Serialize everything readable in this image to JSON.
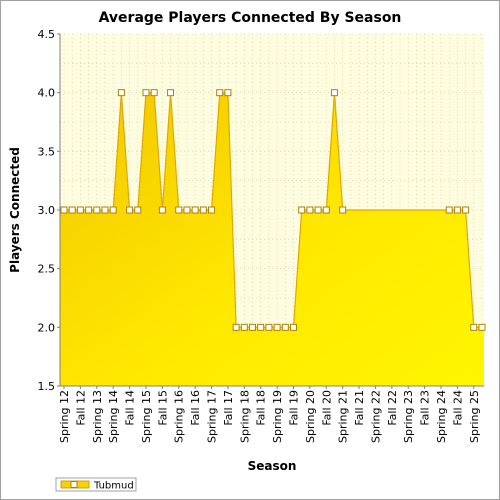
{
  "chart_data": {
    "type": "area",
    "title": "Average Players Connected By Season",
    "xlabel": "Season",
    "ylabel": "Players Connected",
    "ylim": [
      1.5,
      4.5
    ],
    "yticks": [
      "1.5",
      "2.0",
      "2.5",
      "3.0",
      "3.5",
      "4.0",
      "4.5"
    ],
    "grid": true,
    "legend_position": "bottom-left",
    "x": [
      "Spring 12",
      "",
      "Fall 12",
      "",
      "Spring 13",
      "",
      "Spring 14",
      "",
      "Fall 14",
      "",
      "Spring 15",
      "",
      "Fall 15",
      "",
      "Spring 16",
      "",
      "Fall 16",
      "",
      "Spring 17",
      "",
      "Fall 17",
      "",
      "Spring 18",
      "",
      "Fall 18",
      "",
      "Spring 19",
      "",
      "Fall 19",
      "",
      "Spring 20",
      "",
      "Fall 20",
      "",
      "Spring 21",
      "",
      "Fall 21",
      "",
      "Spring 22",
      "",
      "Fall 22",
      "",
      "Spring 23",
      "",
      "Fall 23",
      "",
      "Spring 24",
      "",
      "Fall 24",
      "",
      "Spring 25",
      ""
    ],
    "series": [
      {
        "name": "Tubmud",
        "values": [
          3,
          3,
          3,
          3,
          3,
          3,
          3,
          4,
          3,
          3,
          4,
          4,
          3,
          4,
          3,
          3,
          3,
          3,
          3,
          4,
          4,
          2,
          2,
          2,
          2,
          2,
          2,
          2,
          2,
          3,
          3,
          3,
          3,
          4,
          3,
          null,
          null,
          null,
          null,
          null,
          null,
          null,
          null,
          null,
          null,
          null,
          null,
          3,
          3,
          3,
          2,
          2
        ],
        "line_points": [
          [
            0,
            3
          ],
          [
            1,
            3
          ],
          [
            2,
            3
          ],
          [
            3,
            3
          ],
          [
            4,
            3
          ],
          [
            5,
            3
          ],
          [
            6,
            3
          ],
          [
            7,
            4
          ],
          [
            8,
            3
          ],
          [
            9,
            3
          ],
          [
            10,
            4
          ],
          [
            11,
            4
          ],
          [
            12,
            3
          ],
          [
            13,
            4
          ],
          [
            14,
            3
          ],
          [
            15,
            3
          ],
          [
            16,
            3
          ],
          [
            17,
            3
          ],
          [
            18,
            3
          ],
          [
            19,
            4
          ],
          [
            20,
            4
          ],
          [
            21,
            2
          ],
          [
            22,
            2
          ],
          [
            23,
            2
          ],
          [
            24,
            2
          ],
          [
            25,
            2
          ],
          [
            26,
            2
          ],
          [
            27,
            2
          ],
          [
            28,
            2
          ],
          [
            29,
            3
          ],
          [
            30,
            3
          ],
          [
            31,
            3
          ],
          [
            32,
            3
          ],
          [
            33,
            4
          ],
          [
            34,
            3
          ],
          [
            47,
            3
          ],
          [
            48,
            3
          ],
          [
            49,
            3
          ],
          [
            50,
            2
          ],
          [
            51,
            2
          ]
        ],
        "color": "#ffee00",
        "line_color": "#e0a800"
      }
    ]
  },
  "colors": {
    "plot_bg": "#fffde0",
    "grid": "#c8c8a0",
    "fill_light": "#fff200",
    "fill_dark": "#f2c500",
    "line": "#e0a800",
    "marker_fill": "#ffffff",
    "marker_stroke": "#b08000"
  }
}
